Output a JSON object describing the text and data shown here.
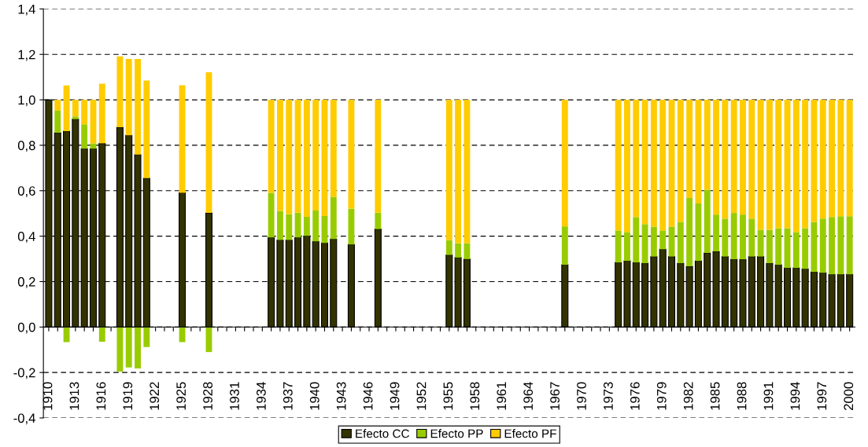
{
  "chart_data": {
    "type": "bar",
    "stacked": true,
    "categories": [
      "1910",
      null,
      null,
      "1913",
      null,
      null,
      "1916",
      null,
      null,
      "1919",
      null,
      null,
      "1922",
      null,
      null,
      "1925",
      null,
      null,
      "1928",
      null,
      null,
      "1931",
      null,
      null,
      "1934",
      null,
      null,
      "1937",
      null,
      null,
      "1940",
      null,
      null,
      "1943",
      null,
      null,
      "1946",
      null,
      null,
      "1949",
      null,
      null,
      "1952",
      null,
      null,
      "1955",
      null,
      null,
      "1958",
      null,
      null,
      "1961",
      null,
      null,
      "1964",
      null,
      null,
      "1967",
      null,
      null,
      "1970",
      null,
      null,
      "1973",
      null,
      null,
      "1976",
      null,
      null,
      "1979",
      null,
      null,
      "1982",
      null,
      null,
      "1985",
      null,
      null,
      "1988",
      null,
      null,
      "1991",
      null,
      null,
      "1994",
      null,
      null,
      "1997",
      null,
      null,
      "2000"
    ],
    "series": [
      {
        "name": "Efecto CC",
        "color": "#333300",
        "values": [
          1.0,
          0.855,
          0.862,
          0.915,
          0.785,
          0.785,
          0.808,
          null,
          0.879,
          0.844,
          0.759,
          0.655,
          null,
          null,
          null,
          0.591,
          null,
          null,
          0.502,
          null,
          null,
          null,
          null,
          null,
          null,
          0.394,
          0.383,
          0.383,
          0.394,
          0.401,
          0.377,
          0.37,
          0.387,
          null,
          0.363,
          null,
          null,
          0.431,
          null,
          null,
          null,
          null,
          null,
          null,
          null,
          0.317,
          0.306,
          0.299,
          null,
          null,
          null,
          null,
          null,
          null,
          null,
          null,
          null,
          null,
          0.274,
          null,
          null,
          null,
          null,
          null,
          0.284,
          0.291,
          0.284,
          0.281,
          0.31,
          0.342,
          0.31,
          0.281,
          0.267,
          0.291,
          0.326,
          0.333,
          0.31,
          0.298,
          0.298,
          0.31,
          0.31,
          0.281,
          0.274,
          0.26,
          0.26,
          0.256,
          0.242,
          0.239,
          0.232,
          0.232,
          0.232
        ]
      },
      {
        "name": "Efecto PP",
        "color": "#99cc00",
        "values": [
          0,
          0.097,
          -0.066,
          0.012,
          0.107,
          0.023,
          -0.065,
          null,
          -0.196,
          -0.178,
          -0.182,
          -0.088,
          null,
          null,
          null,
          -0.066,
          null,
          null,
          -0.11,
          null,
          null,
          null,
          null,
          null,
          null,
          0.197,
          0.128,
          0.113,
          0.109,
          0.084,
          0.136,
          0.119,
          0.186,
          null,
          0.158,
          null,
          null,
          0.072,
          null,
          null,
          null,
          null,
          null,
          null,
          null,
          0.066,
          0.063,
          0.07,
          null,
          null,
          null,
          null,
          null,
          null,
          null,
          null,
          null,
          null,
          0.169,
          null,
          null,
          null,
          null,
          null,
          0.141,
          0.127,
          0.2,
          0.172,
          0.132,
          0.083,
          0.132,
          0.182,
          0.301,
          0.253,
          0.278,
          0.162,
          0.167,
          0.204,
          0.197,
          0.167,
          0.118,
          0.147,
          0.161,
          0.175,
          0.158,
          0.179,
          0.221,
          0.238,
          0.252,
          0.256,
          0.256
        ]
      },
      {
        "name": "Efecto PF",
        "color": "#ffcc00",
        "values": [
          0,
          0.048,
          0.201,
          0.073,
          0.108,
          0.192,
          0.263,
          null,
          0.312,
          0.336,
          0.421,
          0.43,
          null,
          null,
          null,
          0.473,
          null,
          null,
          0.619,
          null,
          null,
          null,
          null,
          null,
          null,
          0.409,
          0.489,
          0.504,
          0.497,
          0.515,
          0.487,
          0.511,
          0.427,
          null,
          0.479,
          null,
          null,
          0.497,
          null,
          null,
          null,
          null,
          null,
          null,
          null,
          0.617,
          0.631,
          0.631,
          null,
          null,
          null,
          null,
          null,
          null,
          null,
          null,
          null,
          null,
          0.557,
          null,
          null,
          null,
          null,
          null,
          0.575,
          0.582,
          0.516,
          0.547,
          0.558,
          0.575,
          0.558,
          0.537,
          0.432,
          0.456,
          0.396,
          0.505,
          0.523,
          0.498,
          0.505,
          0.523,
          0.572,
          0.572,
          0.565,
          0.565,
          0.582,
          0.565,
          0.537,
          0.523,
          0.516,
          0.512,
          0.512
        ]
      }
    ],
    "ylim": [
      -0.4,
      1.4
    ],
    "yticks": [
      {
        "value": -0.4,
        "label": "-0,4"
      },
      {
        "value": -0.2,
        "label": "-0,2"
      },
      {
        "value": 0,
        "label": "0,0"
      },
      {
        "value": 0.2,
        "label": "0,2"
      },
      {
        "value": 0.4,
        "label": "0,4"
      },
      {
        "value": 0.6,
        "label": "0,6"
      },
      {
        "value": 0.8,
        "label": "0,8"
      },
      {
        "value": 1.0,
        "label": "1,0"
      },
      {
        "value": 1.2,
        "label": "1,2"
      },
      {
        "value": 1.4,
        "label": "1,4"
      }
    ],
    "grid": "y",
    "legend": "bottom"
  }
}
